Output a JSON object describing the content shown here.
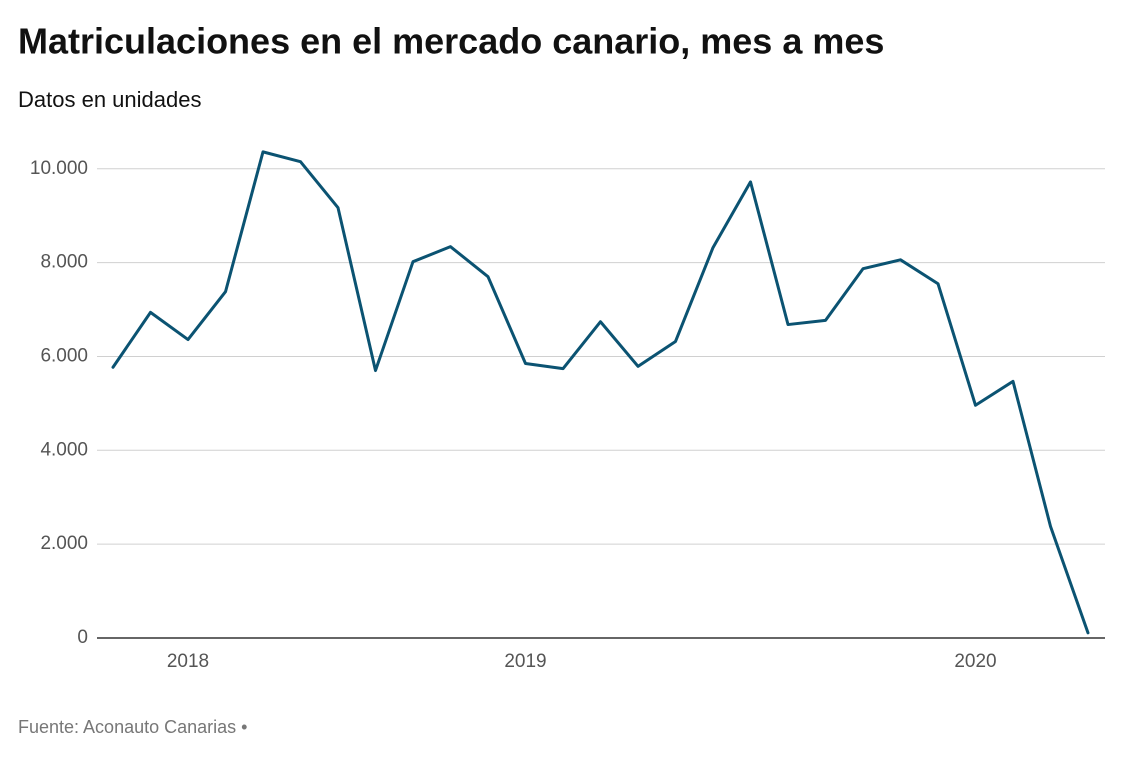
{
  "chart_data": {
    "type": "line",
    "title": "Matriculaciones en el mercado canario, mes a mes",
    "subtitle": "Datos en unidades",
    "source": "Fuente: Aconauto Canarias •",
    "categories": [
      null,
      null,
      "2018",
      null,
      null,
      null,
      null,
      null,
      null,
      null,
      null,
      "2019",
      null,
      null,
      null,
      null,
      null,
      null,
      null,
      null,
      null,
      null,
      null,
      "2020",
      null,
      null,
      null
    ],
    "series": [
      {
        "name": "Matriculaciones",
        "color": "#0b5372",
        "values": [
          5770,
          6940,
          6360,
          7380,
          10360,
          10150,
          9170,
          5700,
          8020,
          8340,
          7700,
          5850,
          5740,
          6740,
          5790,
          6320,
          8320,
          9720,
          6680,
          6770,
          7870,
          8060,
          7550,
          4960,
          5470,
          2380,
          110
        ]
      }
    ],
    "ylim": [
      0,
      10400
    ],
    "yticks": [
      0,
      {
        "value": 2000,
        "label": "2.000"
      },
      {
        "value": 4000,
        "label": "4.000"
      },
      {
        "value": 6000,
        "label": "6.000"
      },
      {
        "value": 8000,
        "label": "8.000"
      },
      {
        "value": 10000,
        "label": "10.000"
      }
    ],
    "grid": true
  }
}
